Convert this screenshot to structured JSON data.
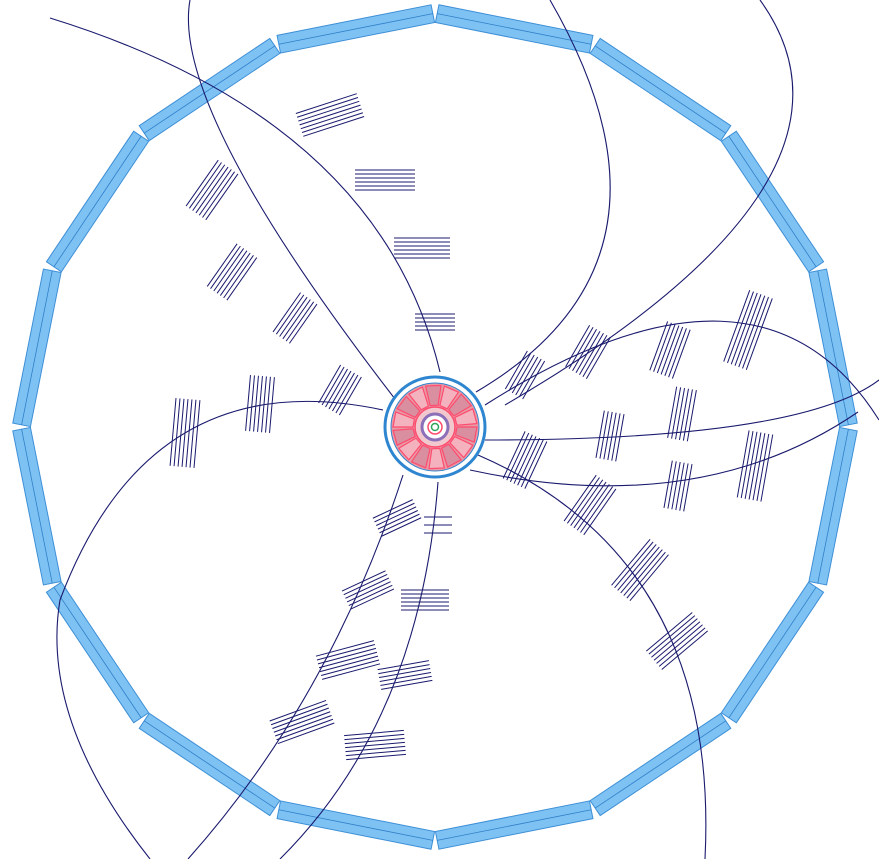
{
  "title": "",
  "colors": {
    "background": "#ffffff",
    "module_fill": "#7ec2f4",
    "module_stroke": "#3d8fd6",
    "module_seam": "#2f7fc8",
    "track": "#1a1a6e",
    "hit": "#1a1a6e",
    "core_ring": "#2e86d0",
    "core_fill_outer": "#e79aa6",
    "core_fill_inner": "#f3b2bd",
    "core_accent": "#ff4b6e",
    "core_purple": "#8b6fb8",
    "core_center": "#2fa55a"
  },
  "outer_ring": {
    "sides": 16,
    "description_icon": "barrel-module-icon"
  },
  "central_detector": {
    "layers": 3,
    "segments": 14
  },
  "tracks": {
    "count": 12
  },
  "hit_clusters": {
    "count": 40
  }
}
